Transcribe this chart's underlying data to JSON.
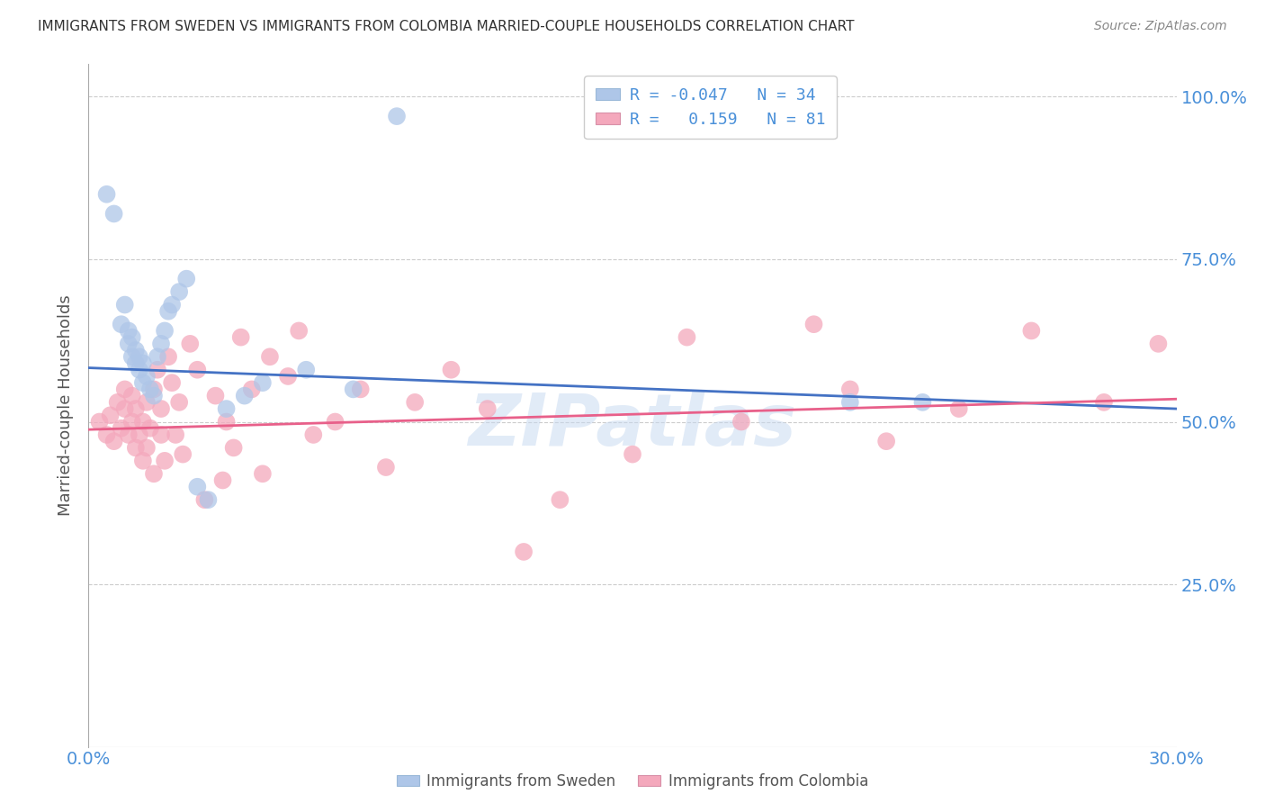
{
  "title": "IMMIGRANTS FROM SWEDEN VS IMMIGRANTS FROM COLOMBIA MARRIED-COUPLE HOUSEHOLDS CORRELATION CHART",
  "source": "Source: ZipAtlas.com",
  "ylabel": "Married-couple Households",
  "watermark": "ZIPatlas",
  "sweden_color": "#aec6e8",
  "colombia_color": "#f4a8bc",
  "sweden_edge_color": "#5b8ec4",
  "colombia_edge_color": "#e07090",
  "sweden_line_color": "#4472c4",
  "colombia_line_color": "#e8608a",
  "axis_color": "#4a90d9",
  "ylabel_color": "#555555",
  "title_color": "#333333",
  "source_color": "#888888",
  "grid_color": "#cccccc",
  "xlim": [
    0.0,
    0.3
  ],
  "ylim": [
    0.0,
    1.05
  ],
  "ytick_vals": [
    0.25,
    0.5,
    0.75,
    1.0
  ],
  "ytick_labels": [
    "25.0%",
    "50.0%",
    "75.0%",
    "100.0%"
  ],
  "xtick_vals": [
    0.0,
    0.3
  ],
  "xtick_labels": [
    "0.0%",
    "30.0%"
  ],
  "sweden_trend": [
    0.583,
    0.52
  ],
  "colombia_trend": [
    0.488,
    0.535
  ],
  "sweden_x": [
    0.005,
    0.007,
    0.009,
    0.01,
    0.011,
    0.011,
    0.012,
    0.012,
    0.013,
    0.013,
    0.014,
    0.014,
    0.015,
    0.015,
    0.016,
    0.017,
    0.018,
    0.019,
    0.02,
    0.021,
    0.022,
    0.023,
    0.025,
    0.027,
    0.03,
    0.033,
    0.038,
    0.043,
    0.048,
    0.06,
    0.073,
    0.085,
    0.21,
    0.23
  ],
  "sweden_y": [
    0.85,
    0.82,
    0.65,
    0.68,
    0.62,
    0.64,
    0.6,
    0.63,
    0.59,
    0.61,
    0.58,
    0.6,
    0.56,
    0.59,
    0.57,
    0.55,
    0.54,
    0.6,
    0.62,
    0.64,
    0.67,
    0.68,
    0.7,
    0.72,
    0.4,
    0.38,
    0.52,
    0.54,
    0.56,
    0.58,
    0.55,
    0.97,
    0.53,
    0.53
  ],
  "colombia_x": [
    0.003,
    0.005,
    0.006,
    0.007,
    0.008,
    0.009,
    0.01,
    0.01,
    0.011,
    0.012,
    0.012,
    0.013,
    0.013,
    0.014,
    0.015,
    0.015,
    0.016,
    0.016,
    0.017,
    0.018,
    0.018,
    0.019,
    0.02,
    0.02,
    0.021,
    0.022,
    0.023,
    0.024,
    0.025,
    0.026,
    0.028,
    0.03,
    0.032,
    0.035,
    0.037,
    0.038,
    0.04,
    0.042,
    0.045,
    0.048,
    0.05,
    0.055,
    0.058,
    0.062,
    0.068,
    0.075,
    0.082,
    0.09,
    0.1,
    0.11,
    0.12,
    0.13,
    0.15,
    0.165,
    0.18,
    0.2,
    0.21,
    0.22,
    0.24,
    0.26,
    0.28,
    0.295
  ],
  "colombia_y": [
    0.5,
    0.48,
    0.51,
    0.47,
    0.53,
    0.49,
    0.52,
    0.55,
    0.48,
    0.54,
    0.5,
    0.46,
    0.52,
    0.48,
    0.44,
    0.5,
    0.46,
    0.53,
    0.49,
    0.55,
    0.42,
    0.58,
    0.52,
    0.48,
    0.44,
    0.6,
    0.56,
    0.48,
    0.53,
    0.45,
    0.62,
    0.58,
    0.38,
    0.54,
    0.41,
    0.5,
    0.46,
    0.63,
    0.55,
    0.42,
    0.6,
    0.57,
    0.64,
    0.48,
    0.5,
    0.55,
    0.43,
    0.53,
    0.58,
    0.52,
    0.3,
    0.38,
    0.45,
    0.63,
    0.5,
    0.65,
    0.55,
    0.47,
    0.52,
    0.64,
    0.53,
    0.62
  ]
}
